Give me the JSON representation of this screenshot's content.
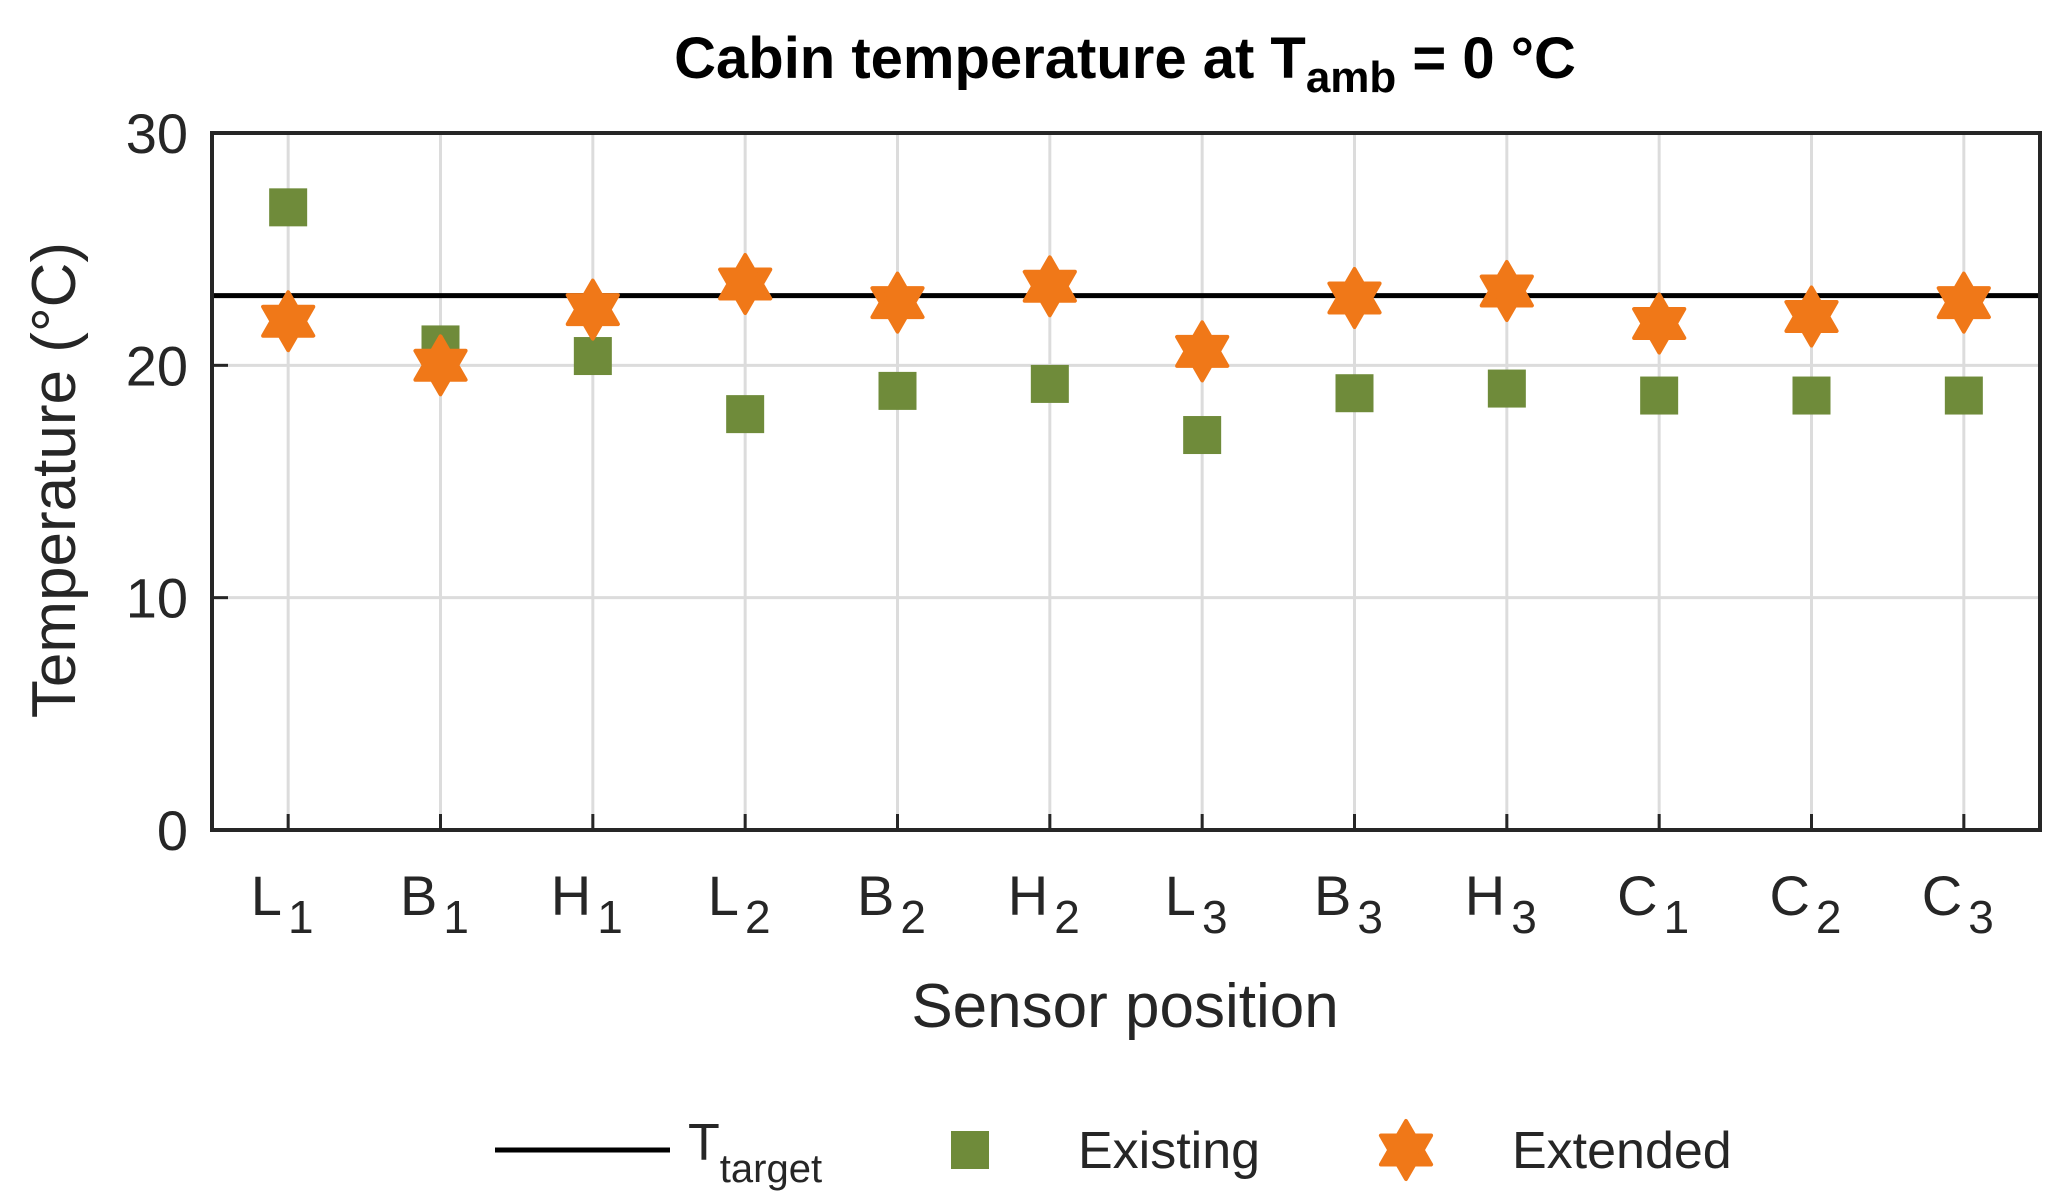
{
  "chart_data": {
    "type": "scatter",
    "title_parts": {
      "main": "Cabin temperature at T",
      "sub": "amb",
      "tail": " = 0 °C"
    },
    "xlabel": "Sensor position",
    "ylabel": "Temperature (°C)",
    "ylim": [
      0,
      30
    ],
    "yticks": [
      0,
      10,
      20,
      30
    ],
    "grid": true,
    "categories": [
      {
        "main": "L",
        "sub": "1"
      },
      {
        "main": "B",
        "sub": "1"
      },
      {
        "main": "H",
        "sub": "1"
      },
      {
        "main": "L",
        "sub": "2"
      },
      {
        "main": "B",
        "sub": "2"
      },
      {
        "main": "H",
        "sub": "2"
      },
      {
        "main": "L",
        "sub": "3"
      },
      {
        "main": "B",
        "sub": "3"
      },
      {
        "main": "H",
        "sub": "3"
      },
      {
        "main": "C",
        "sub": "1"
      },
      {
        "main": "C",
        "sub": "2"
      },
      {
        "main": "C",
        "sub": "3"
      }
    ],
    "reference_line": {
      "label_main": "T",
      "label_sub": "target",
      "value": 23.0,
      "color": "#000000"
    },
    "series": [
      {
        "name": "Existing",
        "marker": "square",
        "color": "#6f8b3a",
        "values": [
          26.8,
          20.9,
          20.4,
          17.9,
          18.9,
          19.2,
          17.0,
          18.8,
          19.0,
          18.7,
          18.7,
          18.7
        ]
      },
      {
        "name": "Extended",
        "marker": "hexagram",
        "color": "#f07818",
        "values": [
          21.9,
          20.0,
          22.4,
          23.5,
          22.7,
          23.4,
          20.6,
          22.9,
          23.2,
          21.8,
          22.1,
          22.7
        ]
      }
    ],
    "legend_position": "bottom-outside"
  }
}
